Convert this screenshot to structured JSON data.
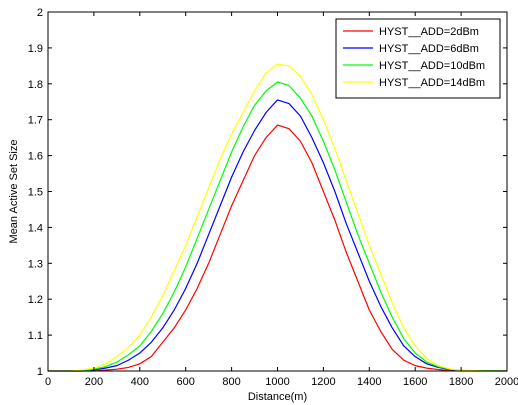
{
  "chart_data": {
    "type": "line",
    "title": "",
    "xlabel": "Distance(m)",
    "ylabel": "Mean Active Set Size",
    "xlim": [
      0,
      2000
    ],
    "ylim": [
      1,
      2
    ],
    "xticks": [
      0,
      200,
      400,
      600,
      800,
      1000,
      1200,
      1400,
      1600,
      1800,
      2000
    ],
    "yticks": [
      1,
      1.1,
      1.2,
      1.3,
      1.4,
      1.5,
      1.6,
      1.7,
      1.8,
      1.9,
      2
    ],
    "xtick_labels": [
      "0",
      "200",
      "400",
      "600",
      "800",
      "1000",
      "1200",
      "1400",
      "1600",
      "1800",
      "2000"
    ],
    "ytick_labels": [
      "1",
      "1.1",
      "1.2",
      "1.3",
      "1.4",
      "1.5",
      "1.6",
      "1.7",
      "1.8",
      "1.9",
      "2"
    ],
    "grid": false,
    "legend_position": "top-right",
    "series": [
      {
        "name": "HYST__ADD=2dBm",
        "color": "#ff0000",
        "x": [
          0,
          200,
          300,
          350,
          400,
          450,
          500,
          550,
          600,
          650,
          700,
          750,
          800,
          850,
          900,
          950,
          1000,
          1050,
          1100,
          1150,
          1200,
          1250,
          1300,
          1350,
          1400,
          1450,
          1500,
          1550,
          1600,
          1650,
          1700,
          1750,
          1800,
          2000
        ],
        "y": [
          1,
          1,
          1.005,
          1.01,
          1.02,
          1.04,
          1.08,
          1.12,
          1.17,
          1.23,
          1.3,
          1.38,
          1.46,
          1.53,
          1.6,
          1.65,
          1.685,
          1.675,
          1.64,
          1.58,
          1.5,
          1.42,
          1.33,
          1.25,
          1.17,
          1.11,
          1.06,
          1.03,
          1.015,
          1.008,
          1.004,
          1.001,
          1,
          1
        ]
      },
      {
        "name": "HYST__ADD=6dBm",
        "color": "#0000ff",
        "x": [
          0,
          150,
          200,
          250,
          300,
          350,
          400,
          450,
          500,
          550,
          600,
          650,
          700,
          750,
          800,
          850,
          900,
          950,
          1000,
          1050,
          1100,
          1150,
          1200,
          1250,
          1300,
          1350,
          1400,
          1450,
          1500,
          1550,
          1600,
          1650,
          1700,
          1750,
          1800,
          2000
        ],
        "y": [
          1,
          1,
          1.003,
          1.008,
          1.015,
          1.03,
          1.05,
          1.08,
          1.12,
          1.17,
          1.23,
          1.3,
          1.38,
          1.46,
          1.54,
          1.61,
          1.67,
          1.72,
          1.755,
          1.745,
          1.71,
          1.65,
          1.58,
          1.5,
          1.41,
          1.33,
          1.25,
          1.18,
          1.12,
          1.07,
          1.04,
          1.02,
          1.01,
          1.004,
          1.001,
          1
        ]
      },
      {
        "name": "HYST__ADD=10dBm",
        "color": "#00ff00",
        "x": [
          0,
          150,
          200,
          250,
          300,
          350,
          400,
          450,
          500,
          550,
          600,
          650,
          700,
          750,
          800,
          850,
          900,
          950,
          1000,
          1050,
          1100,
          1150,
          1200,
          1250,
          1300,
          1350,
          1400,
          1450,
          1500,
          1550,
          1600,
          1650,
          1700,
          1750,
          1800,
          1850,
          2000
        ],
        "y": [
          1,
          1,
          1.005,
          1.012,
          1.025,
          1.045,
          1.07,
          1.11,
          1.16,
          1.22,
          1.29,
          1.37,
          1.45,
          1.53,
          1.61,
          1.68,
          1.74,
          1.78,
          1.805,
          1.795,
          1.76,
          1.71,
          1.64,
          1.56,
          1.47,
          1.38,
          1.3,
          1.22,
          1.15,
          1.09,
          1.05,
          1.025,
          1.012,
          1.005,
          1.002,
          1.001,
          1
        ]
      },
      {
        "name": "HYST__ADD=14dBm",
        "color": "#ffff00",
        "x": [
          0,
          100,
          150,
          200,
          250,
          300,
          350,
          400,
          450,
          500,
          550,
          600,
          650,
          700,
          750,
          800,
          850,
          900,
          950,
          1000,
          1050,
          1100,
          1150,
          1200,
          1250,
          1300,
          1350,
          1400,
          1450,
          1500,
          1550,
          1600,
          1650,
          1700,
          1750,
          1800,
          1850,
          1900,
          2000
        ],
        "y": [
          1,
          1,
          1.003,
          1.008,
          1.02,
          1.04,
          1.065,
          1.1,
          1.15,
          1.21,
          1.28,
          1.35,
          1.43,
          1.51,
          1.59,
          1.66,
          1.72,
          1.78,
          1.83,
          1.855,
          1.85,
          1.82,
          1.77,
          1.7,
          1.62,
          1.53,
          1.44,
          1.35,
          1.27,
          1.19,
          1.12,
          1.07,
          1.035,
          1.015,
          1.006,
          1.002,
          1.001,
          1,
          1
        ]
      }
    ]
  }
}
